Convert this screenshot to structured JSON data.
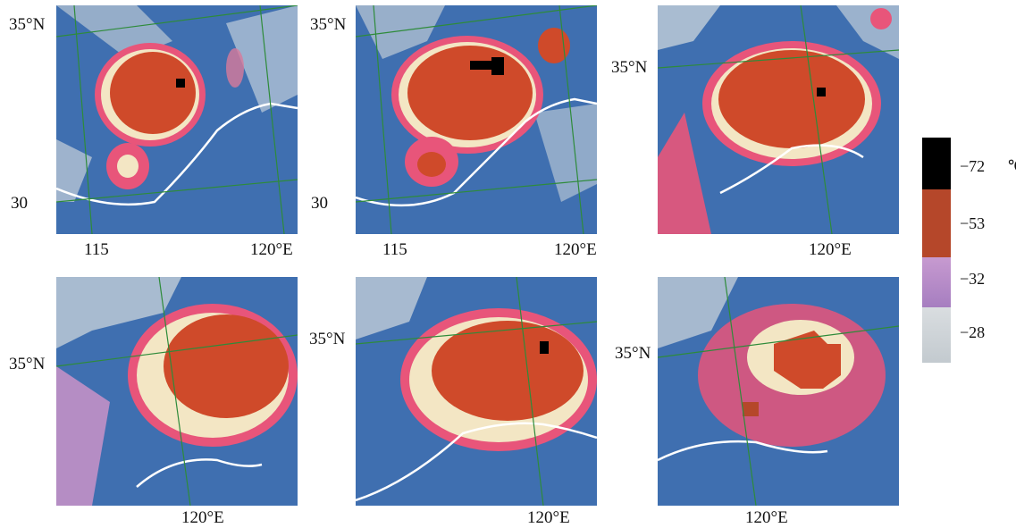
{
  "panels": [
    {
      "lat": "35°N",
      "lat2": "30",
      "lon": "115",
      "lon2": "120°E"
    },
    {
      "lat": "35°N",
      "lat2": "30",
      "lon": "115",
      "lon2": "120°E"
    },
    {
      "lat": "35°N",
      "lon2": "120°E"
    },
    {
      "lat": "35°N",
      "lon2": "120°E"
    },
    {
      "lat": "35°N",
      "lon2": "120°E"
    },
    {
      "lat": "35°N",
      "lon2": "120°E"
    }
  ],
  "legend": {
    "unit": "℃",
    "labels": [
      "−72",
      "−53",
      "−32",
      "−28"
    ],
    "colors": [
      "#000000",
      "#b5472a",
      "#b88ac6",
      "#c8cfd3"
    ]
  },
  "palette": {
    "ocean": "#3f6fb0",
    "land_cloud": "#9fb4cc",
    "cold_core": "#cf4a2a",
    "warm_ring": "#e8557a",
    "cream": "#f3e6c4",
    "grid": "#2e8b3a",
    "coast": "#ffffff",
    "overshoot": "#000000"
  }
}
